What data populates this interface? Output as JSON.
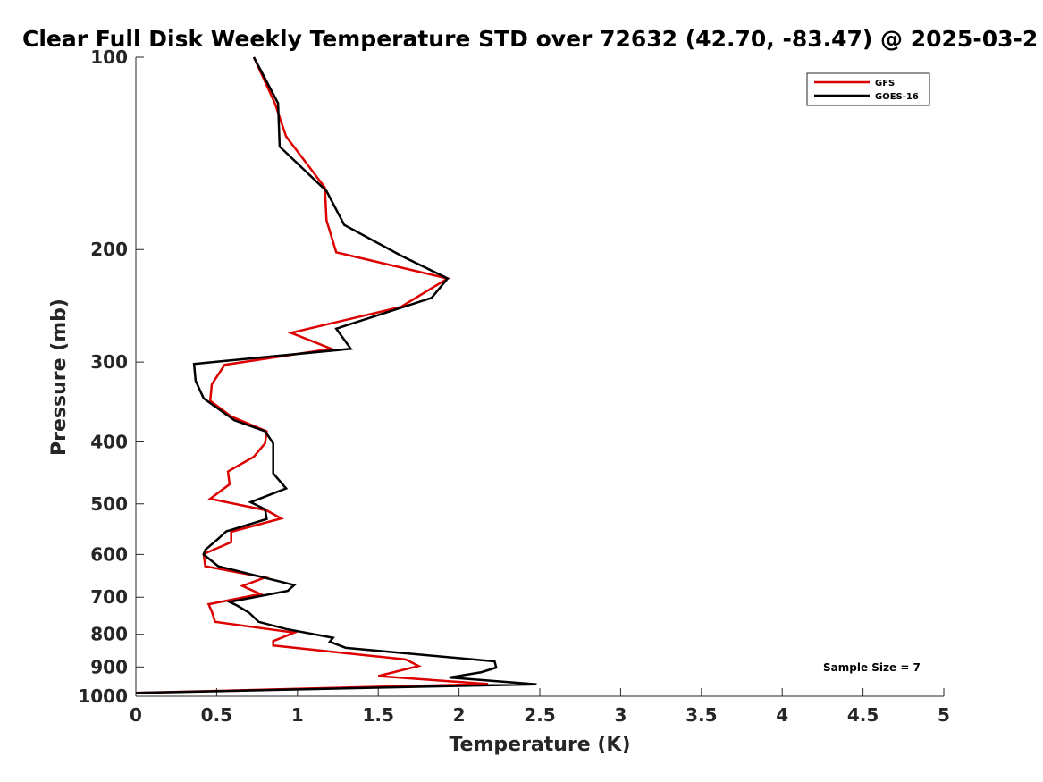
{
  "chart_data": {
    "type": "line",
    "title": "Clear Full Disk Weekly Temperature STD over 72632 (42.70, -83.47) @ 2025-03-2",
    "xlabel": "Temperature (K)",
    "ylabel": "Pressure (mb)",
    "xlim": [
      0,
      5
    ],
    "ylim": [
      1000,
      100
    ],
    "yscale": "log",
    "y_reversed": true,
    "grid": false,
    "legend_position": "top-right",
    "x_ticks": [
      0,
      0.5,
      1,
      1.5,
      2,
      2.5,
      3,
      3.5,
      4,
      4.5,
      5
    ],
    "x_tick_labels": [
      "0",
      "0.5",
      "1",
      "1.5",
      "2",
      "2.5",
      "3",
      "3.5",
      "4",
      "4.5",
      "5"
    ],
    "y_ticks": [
      100,
      200,
      300,
      400,
      500,
      600,
      700,
      800,
      900,
      1000
    ],
    "y_tick_labels": [
      "100",
      "200",
      "300",
      "400",
      "500",
      "600",
      "700",
      "800",
      "900",
      "1000"
    ],
    "annotation": "Sample Size = 7",
    "series": [
      {
        "name": "GFS",
        "color": "#dd0000",
        "points": [
          [
            0.73,
            100
          ],
          [
            0.86,
            118
          ],
          [
            0.93,
            133
          ],
          [
            1.17,
            160
          ],
          [
            1.18,
            180
          ],
          [
            1.24,
            202
          ],
          [
            1.93,
            222
          ],
          [
            1.64,
            246
          ],
          [
            0.96,
            270
          ],
          [
            1.21,
            286
          ],
          [
            0.55,
            303
          ],
          [
            0.47,
            325
          ],
          [
            0.46,
            345
          ],
          [
            0.59,
            365
          ],
          [
            0.81,
            385
          ],
          [
            0.8,
            402
          ],
          [
            0.73,
            422
          ],
          [
            0.57,
            445
          ],
          [
            0.58,
            466
          ],
          [
            0.46,
            491
          ],
          [
            0.81,
            512
          ],
          [
            0.9,
            527
          ],
          [
            0.59,
            553
          ],
          [
            0.59,
            574
          ],
          [
            0.42,
            599
          ],
          [
            0.43,
            626
          ],
          [
            0.8,
            652
          ],
          [
            0.66,
            672
          ],
          [
            0.77,
            692
          ],
          [
            0.45,
            718
          ],
          [
            0.47,
            737
          ],
          [
            0.49,
            765
          ],
          [
            0.98,
            795
          ],
          [
            0.85,
            820
          ],
          [
            0.85,
            833
          ],
          [
            1.67,
            876
          ],
          [
            1.75,
            897
          ],
          [
            1.5,
            930
          ],
          [
            2.18,
            957
          ],
          [
            0,
            988
          ]
        ]
      },
      {
        "name": "GOES-16",
        "color": "#000000",
        "points": [
          [
            0.73,
            100
          ],
          [
            0.88,
            118
          ],
          [
            0.89,
            138
          ],
          [
            1.18,
            162
          ],
          [
            1.29,
            183
          ],
          [
            1.65,
            205
          ],
          [
            1.93,
            222
          ],
          [
            1.83,
            238
          ],
          [
            1.24,
            266
          ],
          [
            1.33,
            286
          ],
          [
            0.36,
            302
          ],
          [
            0.37,
            321
          ],
          [
            0.42,
            342
          ],
          [
            0.61,
            370
          ],
          [
            0.8,
            385
          ],
          [
            0.85,
            402
          ],
          [
            0.85,
            448
          ],
          [
            0.93,
            473
          ],
          [
            0.71,
            497
          ],
          [
            0.8,
            510
          ],
          [
            0.81,
            528
          ],
          [
            0.56,
            552
          ],
          [
            0.51,
            567
          ],
          [
            0.43,
            590
          ],
          [
            0.42,
            600
          ],
          [
            0.51,
            626
          ],
          [
            0.98,
            670
          ],
          [
            0.94,
            684
          ],
          [
            0.58,
            712
          ],
          [
            0.63,
            722
          ],
          [
            0.7,
            740
          ],
          [
            0.76,
            765
          ],
          [
            0.93,
            785
          ],
          [
            1.22,
            810
          ],
          [
            1.2,
            822
          ],
          [
            1.3,
            840
          ],
          [
            2.22,
            882
          ],
          [
            2.23,
            902
          ],
          [
            2.14,
            917
          ],
          [
            1.94,
            935
          ],
          [
            2.48,
            958
          ],
          [
            0,
            988
          ]
        ]
      }
    ]
  }
}
